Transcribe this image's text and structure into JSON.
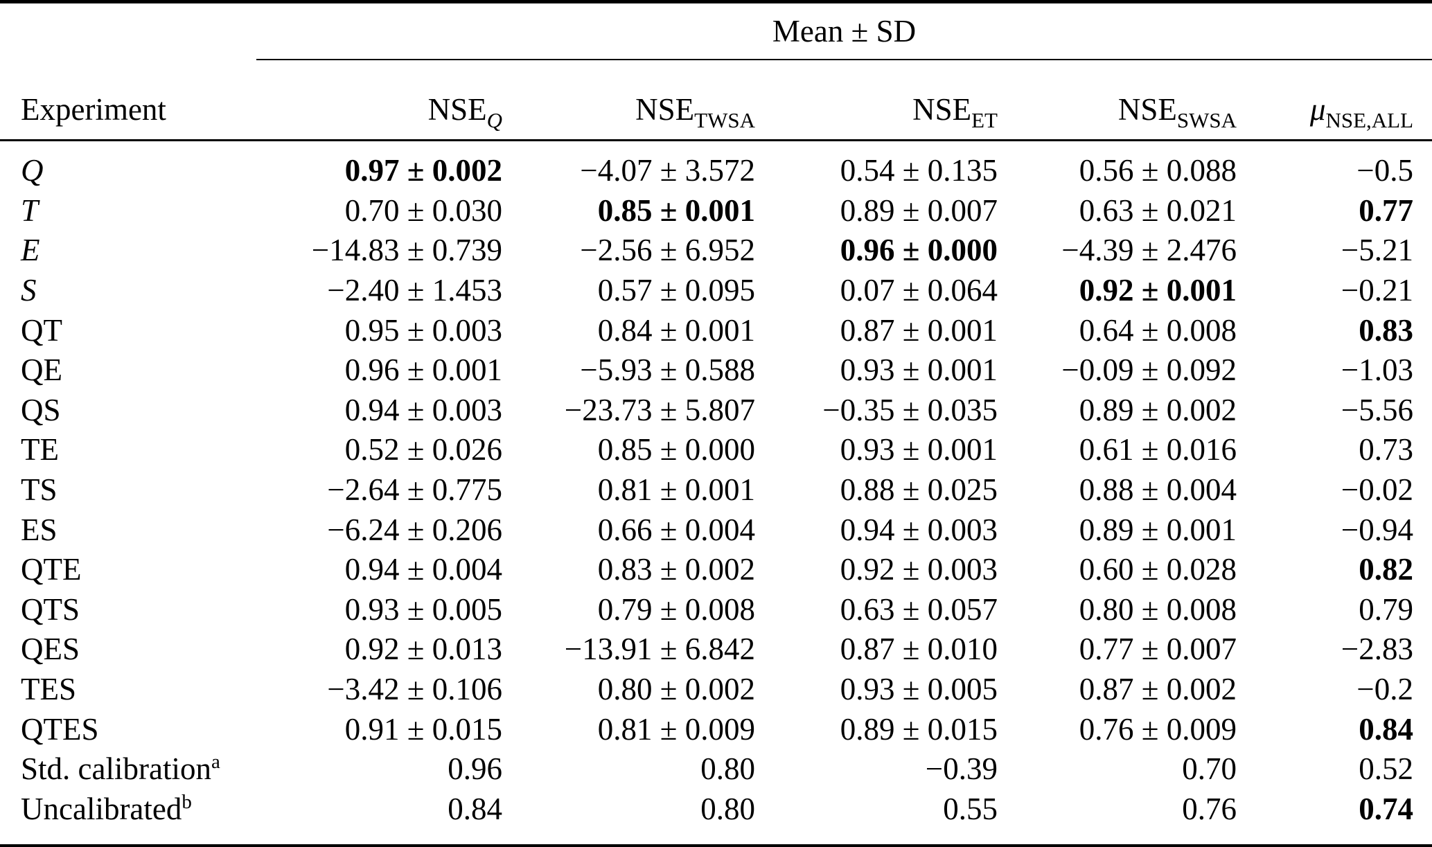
{
  "table": {
    "group_header": "Mean ± SD",
    "columns": [
      {
        "id": "experiment",
        "main": "Experiment",
        "sub": ""
      },
      {
        "id": "nse-q",
        "main": "NSE",
        "sub": "Q",
        "sub_italic": true
      },
      {
        "id": "nse-twsa",
        "main": "NSE",
        "sub": "TWSA"
      },
      {
        "id": "nse-et",
        "main": "NSE",
        "sub": "ET"
      },
      {
        "id": "nse-swsa",
        "main": "NSE",
        "sub": "SWSA"
      },
      {
        "id": "mu-nse-all",
        "main": "μ",
        "main_italic": true,
        "sub": "NSE,ALL"
      }
    ],
    "rows": [
      {
        "label": "Q",
        "italic": true,
        "sup": "",
        "cells": [
          {
            "t": "0.97 ± 0.002",
            "b": true
          },
          {
            "t": "−4.07 ± 3.572",
            "b": false
          },
          {
            "t": "0.54 ± 0.135",
            "b": false
          },
          {
            "t": "0.56 ± 0.088",
            "b": false
          },
          {
            "t": "−0.5",
            "b": false
          }
        ]
      },
      {
        "label": "T",
        "italic": true,
        "sup": "",
        "cells": [
          {
            "t": "0.70 ± 0.030",
            "b": false
          },
          {
            "t": "0.85 ± 0.001",
            "b": true
          },
          {
            "t": "0.89 ± 0.007",
            "b": false
          },
          {
            "t": "0.63 ± 0.021",
            "b": false
          },
          {
            "t": "0.77",
            "b": true
          }
        ]
      },
      {
        "label": "E",
        "italic": true,
        "sup": "",
        "cells": [
          {
            "t": "−14.83 ± 0.739",
            "b": false
          },
          {
            "t": "−2.56 ± 6.952",
            "b": false
          },
          {
            "t": "0.96 ± 0.000",
            "b": true
          },
          {
            "t": "−4.39 ± 2.476",
            "b": false
          },
          {
            "t": "−5.21",
            "b": false
          }
        ]
      },
      {
        "label": "S",
        "italic": true,
        "sup": "",
        "cells": [
          {
            "t": "−2.40 ± 1.453",
            "b": false
          },
          {
            "t": "0.57 ± 0.095",
            "b": false
          },
          {
            "t": "0.07 ± 0.064",
            "b": false
          },
          {
            "t": "0.92 ± 0.001",
            "b": true
          },
          {
            "t": "−0.21",
            "b": false
          }
        ]
      },
      {
        "label": "QT",
        "italic": false,
        "sup": "",
        "cells": [
          {
            "t": "0.95 ± 0.003",
            "b": false
          },
          {
            "t": "0.84 ± 0.001",
            "b": false
          },
          {
            "t": "0.87 ± 0.001",
            "b": false
          },
          {
            "t": "0.64 ± 0.008",
            "b": false
          },
          {
            "t": "0.83",
            "b": true
          }
        ]
      },
      {
        "label": "QE",
        "italic": false,
        "sup": "",
        "cells": [
          {
            "t": "0.96 ± 0.001",
            "b": false
          },
          {
            "t": "−5.93 ± 0.588",
            "b": false
          },
          {
            "t": "0.93 ± 0.001",
            "b": false
          },
          {
            "t": "−0.09 ± 0.092",
            "b": false
          },
          {
            "t": "−1.03",
            "b": false
          }
        ]
      },
      {
        "label": "QS",
        "italic": false,
        "sup": "",
        "cells": [
          {
            "t": "0.94 ± 0.003",
            "b": false
          },
          {
            "t": "−23.73 ± 5.807",
            "b": false
          },
          {
            "t": "−0.35 ± 0.035",
            "b": false
          },
          {
            "t": "0.89 ± 0.002",
            "b": false
          },
          {
            "t": "−5.56",
            "b": false
          }
        ]
      },
      {
        "label": "TE",
        "italic": false,
        "sup": "",
        "cells": [
          {
            "t": "0.52 ± 0.026",
            "b": false
          },
          {
            "t": "0.85 ± 0.000",
            "b": false
          },
          {
            "t": "0.93 ± 0.001",
            "b": false
          },
          {
            "t": "0.61 ± 0.016",
            "b": false
          },
          {
            "t": "0.73",
            "b": false
          }
        ]
      },
      {
        "label": "TS",
        "italic": false,
        "sup": "",
        "cells": [
          {
            "t": "−2.64 ± 0.775",
            "b": false
          },
          {
            "t": "0.81 ± 0.001",
            "b": false
          },
          {
            "t": "0.88 ± 0.025",
            "b": false
          },
          {
            "t": "0.88 ± 0.004",
            "b": false
          },
          {
            "t": "−0.02",
            "b": false
          }
        ]
      },
      {
        "label": "ES",
        "italic": false,
        "sup": "",
        "cells": [
          {
            "t": "−6.24 ± 0.206",
            "b": false
          },
          {
            "t": "0.66 ± 0.004",
            "b": false
          },
          {
            "t": "0.94 ± 0.003",
            "b": false
          },
          {
            "t": "0.89 ± 0.001",
            "b": false
          },
          {
            "t": "−0.94",
            "b": false
          }
        ]
      },
      {
        "label": "QTE",
        "italic": false,
        "sup": "",
        "cells": [
          {
            "t": "0.94 ± 0.004",
            "b": false
          },
          {
            "t": "0.83 ± 0.002",
            "b": false
          },
          {
            "t": "0.92 ± 0.003",
            "b": false
          },
          {
            "t": "0.60 ± 0.028",
            "b": false
          },
          {
            "t": "0.82",
            "b": true
          }
        ]
      },
      {
        "label": "QTS",
        "italic": false,
        "sup": "",
        "cells": [
          {
            "t": "0.93 ± 0.005",
            "b": false
          },
          {
            "t": "0.79 ± 0.008",
            "b": false
          },
          {
            "t": "0.63 ± 0.057",
            "b": false
          },
          {
            "t": "0.80 ± 0.008",
            "b": false
          },
          {
            "t": "0.79",
            "b": false
          }
        ]
      },
      {
        "label": "QES",
        "italic": false,
        "sup": "",
        "cells": [
          {
            "t": "0.92 ± 0.013",
            "b": false
          },
          {
            "t": "−13.91 ± 6.842",
            "b": false
          },
          {
            "t": "0.87 ± 0.010",
            "b": false
          },
          {
            "t": "0.77 ± 0.007",
            "b": false
          },
          {
            "t": "−2.83",
            "b": false
          }
        ]
      },
      {
        "label": "TES",
        "italic": false,
        "sup": "",
        "cells": [
          {
            "t": "−3.42 ± 0.106",
            "b": false
          },
          {
            "t": "0.80 ± 0.002",
            "b": false
          },
          {
            "t": "0.93 ± 0.005",
            "b": false
          },
          {
            "t": "0.87 ± 0.002",
            "b": false
          },
          {
            "t": "−0.2",
            "b": false
          }
        ]
      },
      {
        "label": "QTES",
        "italic": false,
        "sup": "",
        "cells": [
          {
            "t": "0.91 ± 0.015",
            "b": false
          },
          {
            "t": "0.81 ± 0.009",
            "b": false
          },
          {
            "t": "0.89 ± 0.015",
            "b": false
          },
          {
            "t": "0.76 ± 0.009",
            "b": false
          },
          {
            "t": "0.84",
            "b": true
          }
        ]
      },
      {
        "label": "Std. calibration",
        "italic": false,
        "sup": "a",
        "cells": [
          {
            "t": "0.96",
            "b": false
          },
          {
            "t": "0.80",
            "b": false
          },
          {
            "t": "−0.39",
            "b": false
          },
          {
            "t": "0.70",
            "b": false
          },
          {
            "t": "0.52",
            "b": false
          }
        ]
      },
      {
        "label": "Uncalibrated",
        "italic": false,
        "sup": "b",
        "cells": [
          {
            "t": "0.84",
            "b": false
          },
          {
            "t": "0.80",
            "b": false
          },
          {
            "t": "0.55",
            "b": false
          },
          {
            "t": "0.76",
            "b": false
          },
          {
            "t": "0.74",
            "b": true
          }
        ]
      }
    ]
  }
}
